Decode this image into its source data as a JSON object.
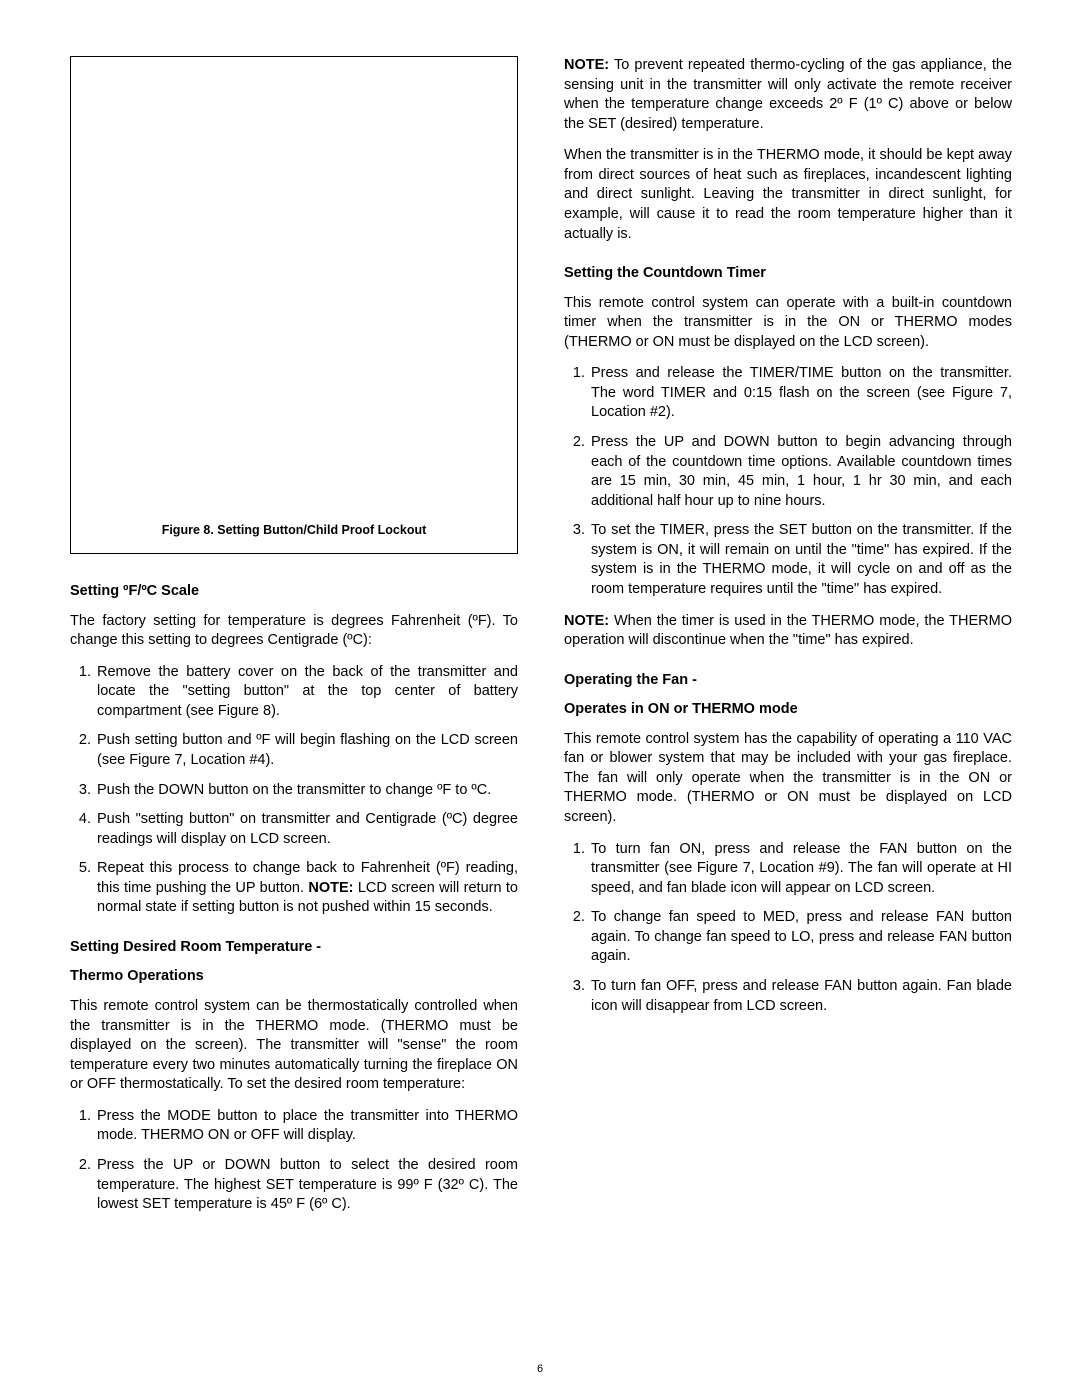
{
  "page_number": "6",
  "left": {
    "figure_caption": "Figure 8.  Setting Button/Child Proof Lockout",
    "scale_heading": "Setting ºF/ºC Scale",
    "scale_intro": "The factory setting for temperature is degrees Fahrenheit (ºF). To change this setting to degrees Centigrade (ºC):",
    "scale_steps": [
      "Remove the battery cover on the back of the transmitter and locate the \"setting button\" at the top center of battery compartment (see Figure 8).",
      "Push setting button and ºF will begin flashing on the LCD screen (see Figure 7, Location #4).",
      "Push the DOWN button on the transmitter to change ºF to ºC.",
      "Push \"setting button\" on transmitter and Centigrade (ºC) degree readings will display on LCD screen."
    ],
    "scale_step5_a": "Repeat this process to change back to Fahrenheit (ºF) reading, this time  pushing the UP button. ",
    "scale_step5_note_label": "NOTE:",
    "scale_step5_b": " LCD screen will return to normal state if setting button is not pushed within 15 seconds.",
    "thermo_heading1": "Setting Desired Room Temperature -",
    "thermo_heading2": "Thermo Operations",
    "thermo_intro": "This remote control system can be thermostatically controlled when the transmitter is in the THERMO mode. (THERMO must be displayed on the screen). The transmitter will \"sense\" the room temperature every two minutes automatically turning the fireplace ON or OFF thermostatically. To set the desired room temperature:",
    "thermo_steps": [
      "Press the MODE button to place the transmitter into THERMO mode. THERMO ON or OFF will display.",
      "Press the UP or DOWN button to select the desired room temperature. The highest SET temperature is 99º F (32º C). The lowest SET temperature is 45º F (6º C)."
    ]
  },
  "right": {
    "note1_label": "NOTE:",
    "note1_body": " To prevent repeated thermo-cycling of the gas appliance, the sensing unit in the transmitter will only activate the remote receiver when the temperature change exceeds 2º F (1º C) above or below the SET (desired) temperature.",
    "thermo_warn": "When the transmitter is in the THERMO mode, it should be kept away from direct sources of heat such as fireplaces, incandescent lighting and direct sunlight. Leaving the transmitter in direct sunlight, for example, will cause it to read the room temperature higher than it actually is.",
    "timer_heading": "Setting the Countdown Timer",
    "timer_intro": "This remote control system can operate with a built-in countdown timer when the transmitter is in the ON or THERMO modes (THERMO or ON must be displayed on the LCD screen).",
    "timer_steps": [
      "Press and release the TIMER/TIME button on the transmitter. The word TIMER and 0:15 flash on the screen (see Figure 7, Location #2).",
      "Press the UP and DOWN button to begin advancing through each of the countdown time options. Available countdown times are 15 min, 30 min, 45 min, 1 hour, 1 hr 30 min, and each additional half hour up to nine hours.",
      "To set the TIMER, press the SET button on the transmitter. If the system is ON, it will remain on until the \"time\" has expired. If the system is in the THERMO mode, it will cycle on and off as the room temperature requires until the \"time\" has expired."
    ],
    "note2_label": "NOTE:",
    "note2_body": " When the timer is used in the THERMO mode, the THERMO operation will discontinue when the \"time\" has expired.",
    "fan_heading1": "Operating the Fan -",
    "fan_heading2": "Operates in ON or THERMO mode",
    "fan_intro": "This remote control system has the capability of operating a 110 VAC fan or blower system that may be included with your gas fireplace. The fan will only operate when the transmitter is in the ON or THERMO mode. (THERMO or ON must be displayed on LCD screen).",
    "fan_steps": [
      "To turn fan ON, press and release the FAN button on the transmitter (see Figure 7, Location #9). The fan will operate at HI speed, and fan blade icon will appear on LCD screen.",
      "To change fan speed to MED, press and release FAN button again. To change fan speed to LO, press and release FAN button again.",
      "To turn fan OFF, press and release FAN button again. Fan blade icon will disappear from LCD screen."
    ]
  }
}
